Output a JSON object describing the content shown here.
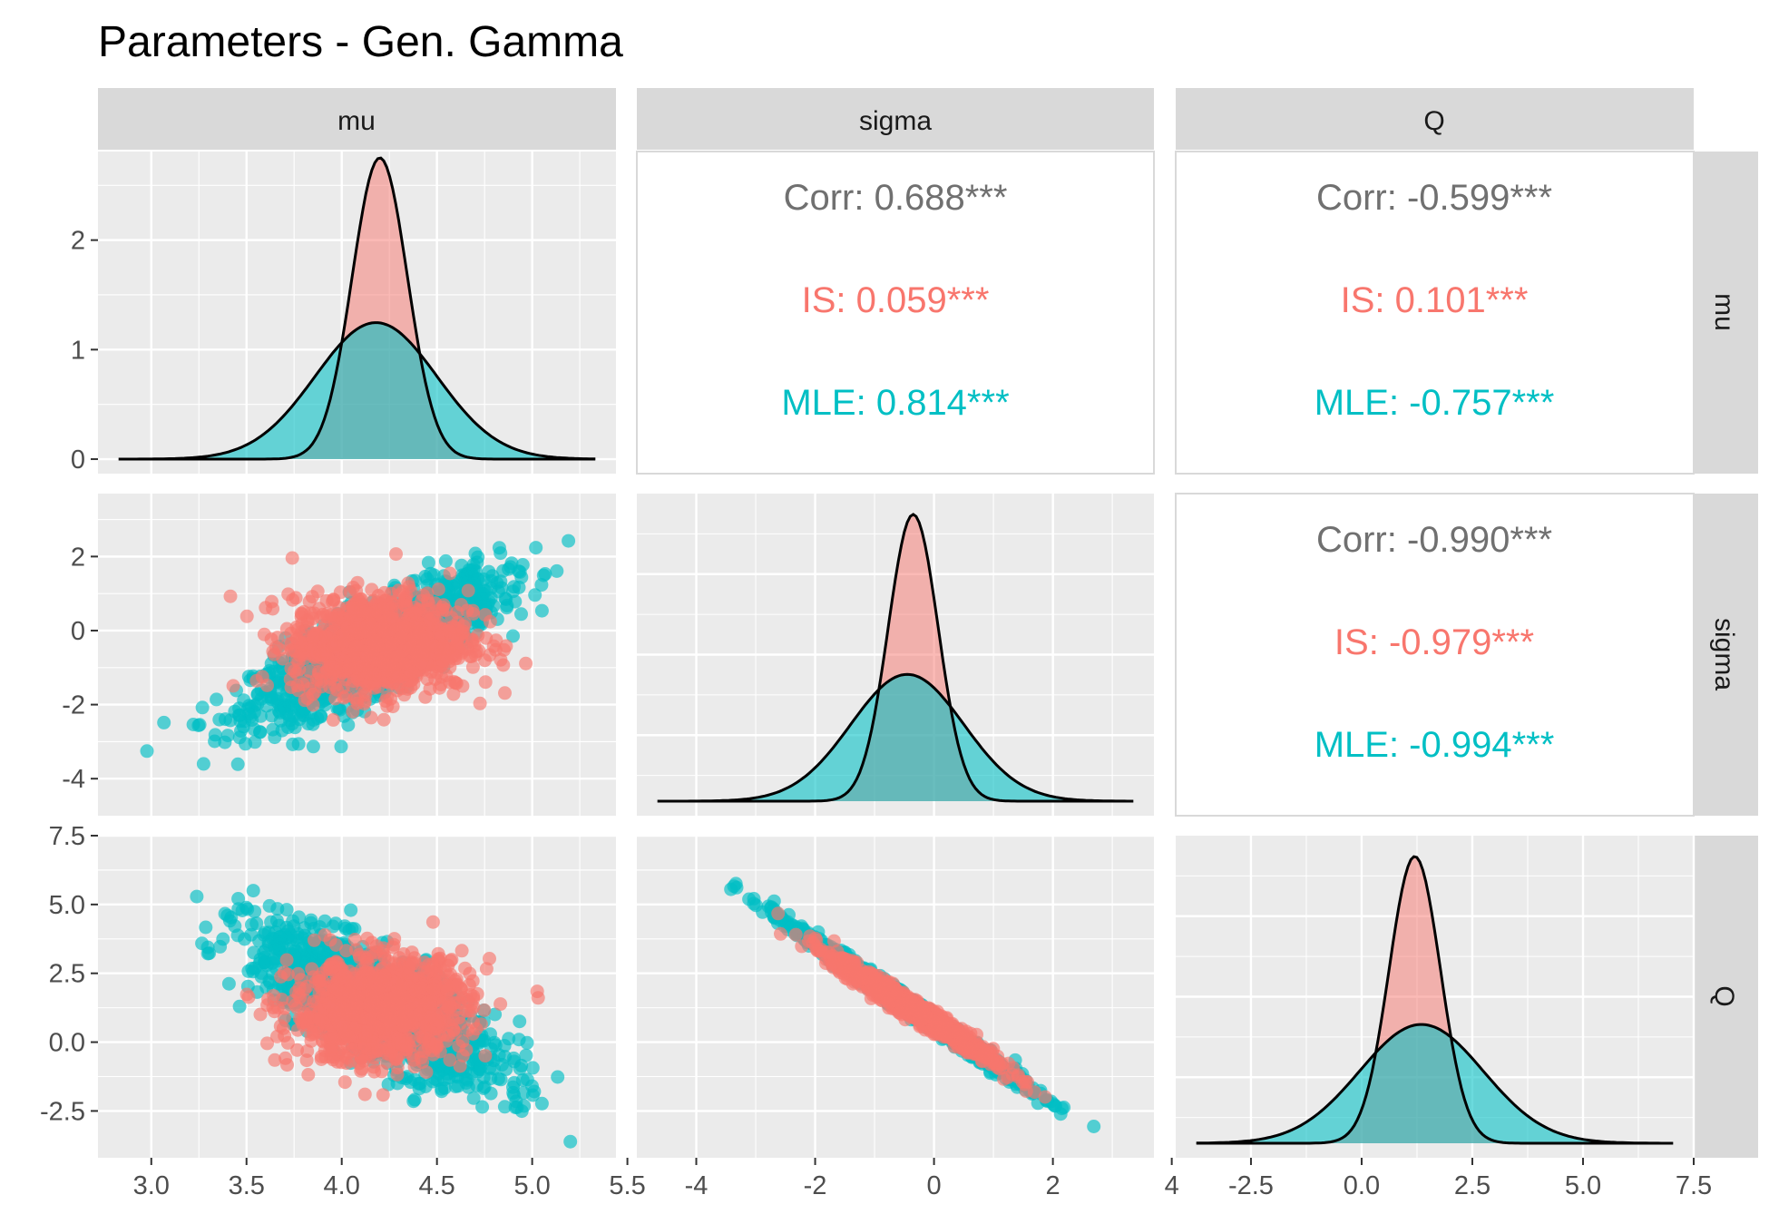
{
  "chart_data": {
    "type": "scatter-matrix",
    "title": "Parameters - Gen. Gamma",
    "variables": [
      "mu",
      "sigma",
      "Q"
    ],
    "groups": [
      {
        "name": "IS",
        "color": "#F8766D"
      },
      {
        "name": "MLE",
        "color": "#00BFC4"
      }
    ],
    "axes": {
      "mu": {
        "range": [
          2.72,
          5.44
        ],
        "ticks": [
          3.0,
          3.5,
          4.0,
          4.5,
          5.0,
          5.5
        ],
        "tick_labels": [
          "3.0",
          "3.5",
          "4.0",
          "4.5",
          "5.0",
          "5.5"
        ]
      },
      "sigma": {
        "range": [
          -5.0,
          3.7
        ],
        "ticks": [
          -4,
          -2,
          0,
          2,
          4
        ],
        "tick_labels": [
          "-4",
          "-2",
          "0",
          "2",
          "4"
        ]
      },
      "Q": {
        "range": [
          -4.2,
          7.5
        ],
        "ticks": [
          -2.5,
          0.0,
          2.5,
          5.0,
          7.5
        ],
        "tick_labels": [
          "-2.5",
          "0.0",
          "2.5",
          "5.0",
          "7.5"
        ]
      }
    },
    "diag_mu_yaxis": {
      "range": [
        0,
        2.75
      ],
      "ticks": [
        0,
        1,
        2
      ],
      "tick_labels": [
        "0",
        "1",
        "2"
      ]
    },
    "distributions": {
      "mu": {
        "IS": {
          "mean": 4.2,
          "sd": 0.145
        },
        "MLE": {
          "mean": 4.18,
          "sd": 0.32
        }
      },
      "sigma": {
        "IS": {
          "mean": -0.35,
          "sd": 0.42
        },
        "MLE": {
          "mean": -0.45,
          "sd": 0.95
        }
      },
      "Q": {
        "IS": {
          "mean": 1.2,
          "sd": 0.58
        },
        "MLE": {
          "mean": 1.35,
          "sd": 1.4
        }
      }
    },
    "correlations": {
      "mu_sigma": {
        "corr": "Corr: 0.688***",
        "is": "IS: 0.059***",
        "mle": "MLE: 0.814***"
      },
      "mu_Q": {
        "corr": "Corr: -0.599***",
        "is": "IS: 0.101***",
        "mle": "MLE: -0.757***"
      },
      "sigma_Q": {
        "corr": "Corr: -0.990***",
        "is": "IS: -0.979***",
        "mle": "MLE: -0.994***"
      }
    },
    "correlation_colors": {
      "corr": "#707070",
      "is": "#F8766D",
      "mle": "#00BFC4"
    }
  }
}
